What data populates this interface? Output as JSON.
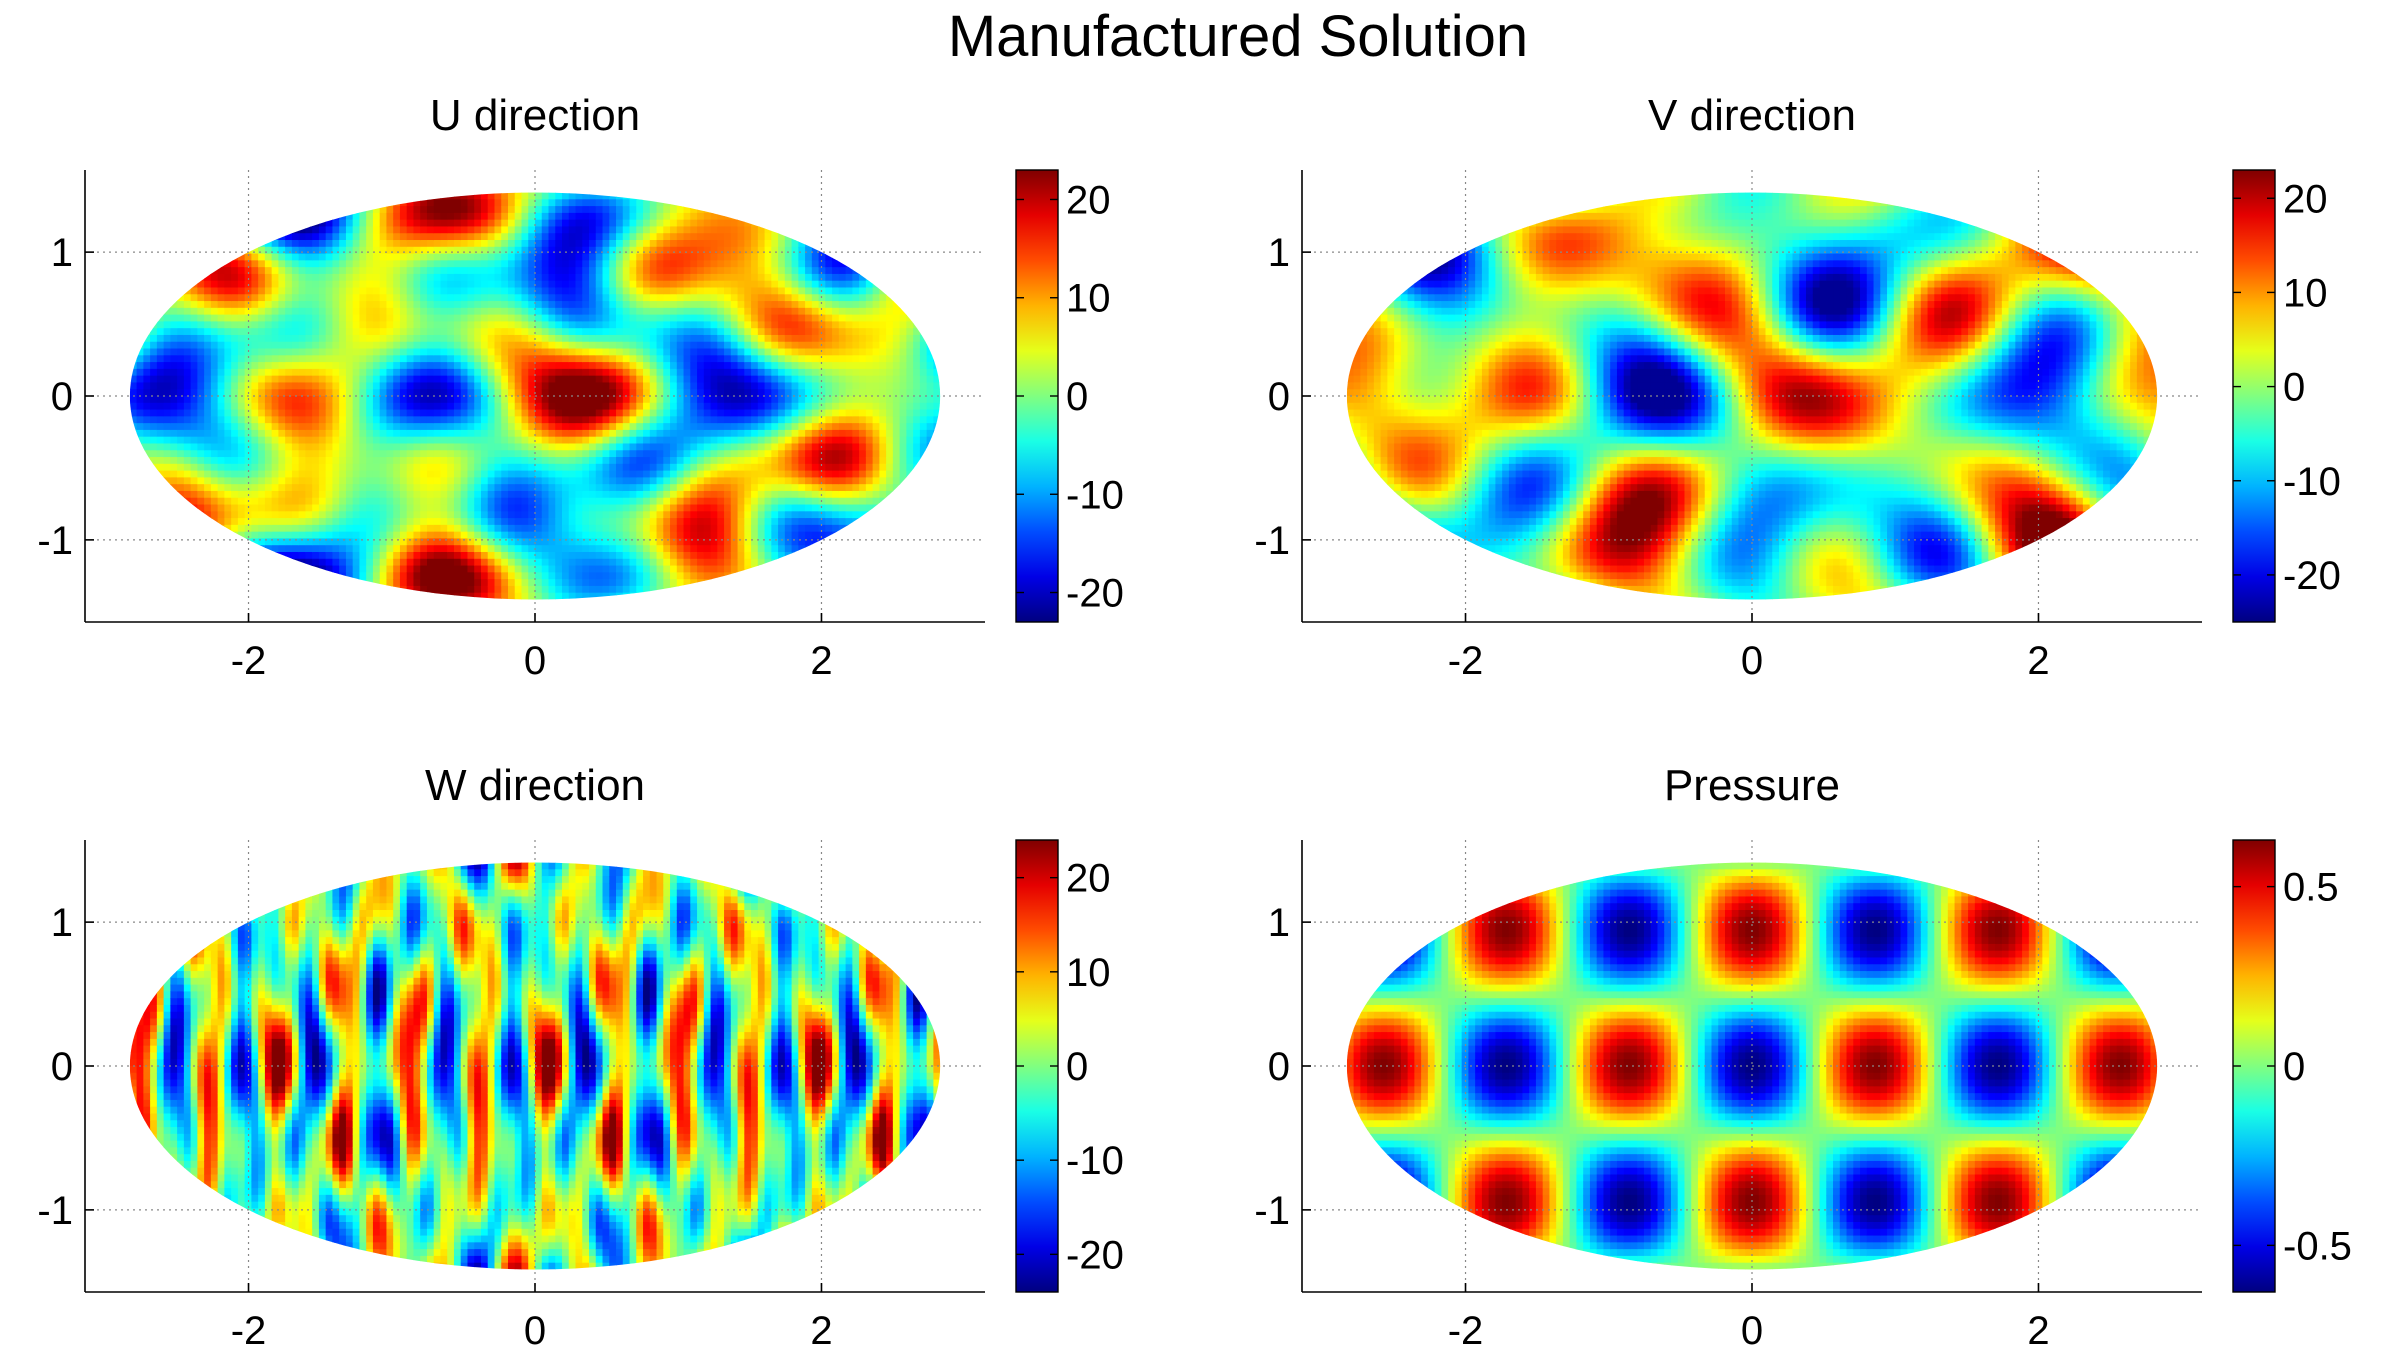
{
  "figure": {
    "title": "Manufactured Solution"
  },
  "chart_data": [
    {
      "type": "heatmap",
      "title": "U direction",
      "xlabel": "",
      "ylabel": "",
      "xlim": [
        -3.14159,
        3.14159
      ],
      "ylim": [
        -1.5708,
        1.5708
      ],
      "xticks": [
        -2,
        0,
        2
      ],
      "yticks": [
        -1,
        0,
        1
      ],
      "grid": true,
      "projection": "mollweide",
      "colormap": "jet",
      "clim": [
        -23,
        23
      ],
      "colorbar_ticks": [
        -20,
        -10,
        0,
        10,
        20
      ],
      "field": {
        "a": 1,
        "b": 0.55,
        "c": 0.55,
        "d": 0.3,
        "fx": 3,
        "fy": 2.5,
        "gx": 1.5,
        "gy": 4,
        "ph": 0.7,
        "ph2": 1.3
      }
    },
    {
      "type": "heatmap",
      "title": "V direction",
      "xlabel": "",
      "ylabel": "",
      "xlim": [
        -3.14159,
        3.14159
      ],
      "ylim": [
        -1.5708,
        1.5708
      ],
      "xticks": [
        -2,
        0,
        2
      ],
      "yticks": [
        -1,
        0,
        1
      ],
      "grid": true,
      "projection": "mollweide",
      "colormap": "jet",
      "clim": [
        -25,
        23
      ],
      "colorbar_ticks": [
        -20,
        -10,
        0,
        10,
        20
      ],
      "field": {
        "a": 1,
        "b": 0.5,
        "c": 0.6,
        "d": 0.35,
        "fx": 2,
        "fy": 3,
        "gx": 4,
        "gy": 2,
        "ph": 0.2,
        "ph2": 0.9
      }
    },
    {
      "type": "heatmap",
      "title": "W direction",
      "xlabel": "",
      "ylabel": "",
      "xlim": [
        -3.14159,
        3.14159
      ],
      "ylim": [
        -1.5708,
        1.5708
      ],
      "xticks": [
        -2,
        0,
        2
      ],
      "yticks": [
        -1,
        0,
        1
      ],
      "grid": true,
      "projection": "mollweide",
      "colormap": "jet",
      "clim": [
        -24,
        24
      ],
      "colorbar_ticks": [
        -20,
        -10,
        0,
        10,
        20
      ],
      "field": {
        "a": 1,
        "b": 0.45,
        "c": 0.5,
        "d": 0.3,
        "fx": 12,
        "fy": 1.5,
        "gx": 6,
        "gy": 4,
        "ph": 0.4,
        "ph2": 1.1
      }
    },
    {
      "type": "heatmap",
      "title": "Pressure",
      "xlabel": "",
      "ylabel": "",
      "xlim": [
        -3.14159,
        3.14159
      ],
      "ylim": [
        -1.5708,
        1.5708
      ],
      "xticks": [
        -2,
        0,
        2
      ],
      "yticks": [
        -1,
        0,
        1
      ],
      "grid": true,
      "projection": "mollweide",
      "colormap": "jet",
      "clim": [
        -0.63,
        0.63
      ],
      "colorbar_ticks": [
        -0.5,
        0,
        0.5
      ],
      "field": {
        "pressure": true,
        "a": 1,
        "b": 0,
        "c": 0,
        "d": 0,
        "fx": 0,
        "fy": 0,
        "gx": 0,
        "gy": 0,
        "ph": 0,
        "ph2": 0
      }
    }
  ]
}
